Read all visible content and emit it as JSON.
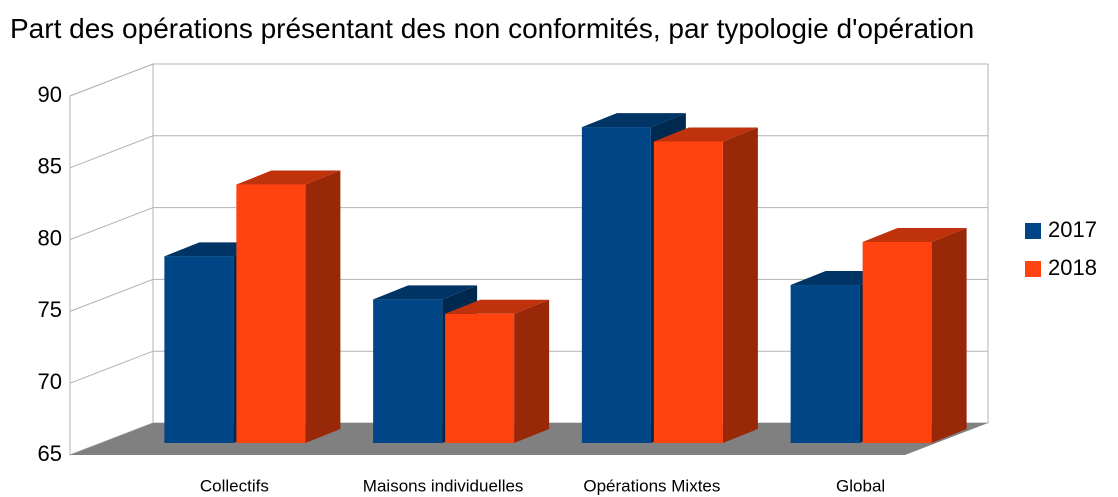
{
  "chart_data": {
    "type": "bar3d",
    "title": "Part des opérations présentant des non conformités, par typologie d'opération",
    "categories": [
      "Collectifs",
      "Maisons individuelles",
      "Opérations Mixtes",
      "Global"
    ],
    "series": [
      {
        "name": "2017",
        "color": "#004586",
        "values": [
          78,
          75,
          87,
          76
        ]
      },
      {
        "name": "2018",
        "color": "#ff420e",
        "values": [
          83,
          74,
          86,
          79
        ]
      }
    ],
    "ylim": [
      65,
      90
    ],
    "yticks": [
      65,
      70,
      75,
      80,
      85,
      90
    ],
    "grid": true,
    "legend": "right"
  }
}
